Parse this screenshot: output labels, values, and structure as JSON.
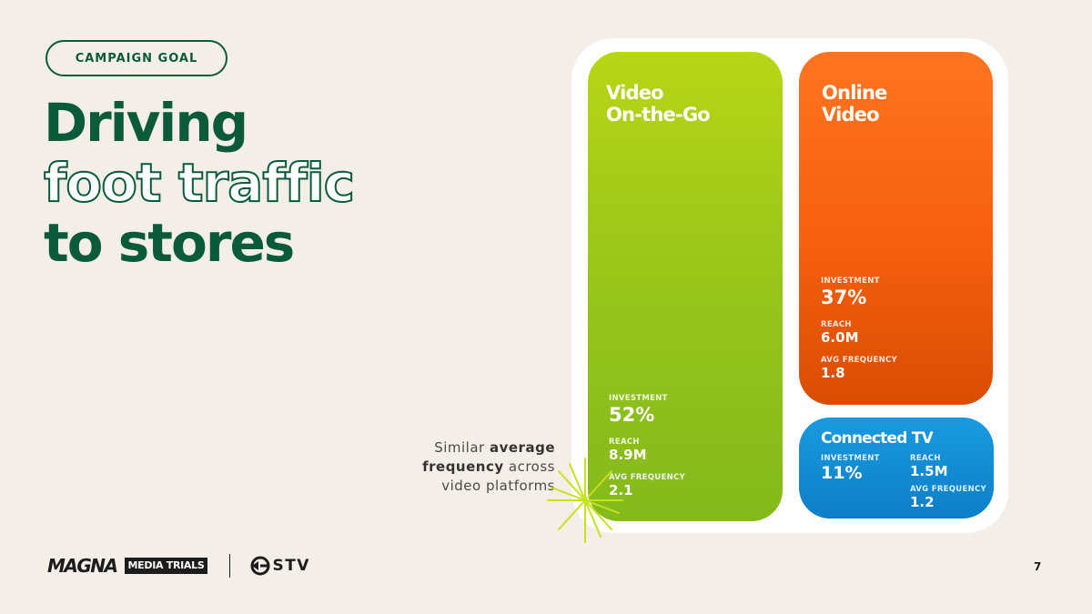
{
  "badge": "CAMPAIGN GOAL",
  "headline": {
    "line1": "Driving",
    "line2": "foot traffic",
    "line3": "to stores"
  },
  "note": {
    "pre": "Similar ",
    "bold": "average frequency",
    "post": " across video platforms"
  },
  "cards": {
    "video_on_the_go": {
      "title_line1": "Video",
      "title_line2": "On-the-Go",
      "color": "#a6cc18",
      "investment_label": "INVESTMENT",
      "investment": "52%",
      "reach_label": "REACH",
      "reach": "8.9M",
      "frequency_label": "AVG FREQUENCY",
      "frequency": "2.1"
    },
    "online_video": {
      "title_line1": "Online",
      "title_line2": "Video",
      "color": "#f76514",
      "investment_label": "INVESTMENT",
      "investment": "37%",
      "reach_label": "REACH",
      "reach": "6.0M",
      "frequency_label": "AVG FREQUENCY",
      "frequency": "1.8"
    },
    "connected_tv": {
      "title": "Connected TV",
      "color": "#118bd3",
      "investment_label": "INVESTMENT",
      "investment": "11%",
      "reach_label": "REACH",
      "reach": "1.5M",
      "frequency_label": "AVG FREQUENCY",
      "frequency": "1.2"
    }
  },
  "footer": {
    "logo_magna": "MAGNA",
    "logo_trials": "MEDIA TRIALS",
    "logo_gstv": "STV",
    "page_number": "7"
  },
  "colors": {
    "background": "#f3efe8",
    "brand_green": "#0b5a3c"
  }
}
